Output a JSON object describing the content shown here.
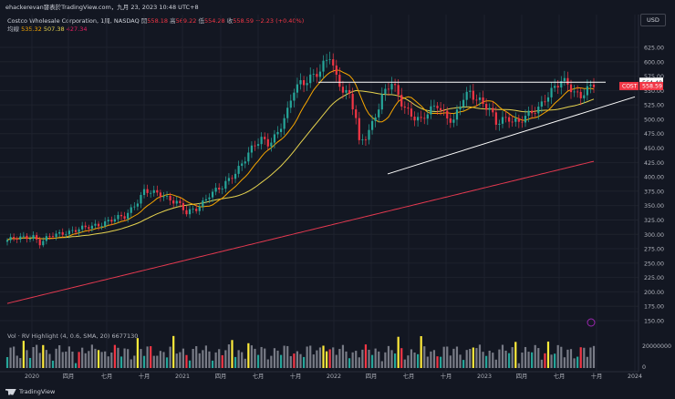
{
  "header": {
    "author_line": "ehackerevan發表於TradingView.com，九月 23, 2023 10:48 UTC+8",
    "symbol": "Costco Wholesale Corporation, 1周, NASDAQ",
    "open_label": "開",
    "open": "558.18",
    "high_label": "高",
    "high": "569.22",
    "low_label": "低",
    "low": "554.28",
    "close_label": "收",
    "close": "558.59",
    "change": "+2.23 (+0.40%)",
    "ma_label": "均線",
    "ma1": "535.32",
    "ma2": "507.38",
    "ma3": "427.34"
  },
  "currency": "USD",
  "volume_label": "Vol · RV Highlight (4, 0.6, SMA, 20)",
  "volume_value": "6677130",
  "volume_axis_label": "20000000",
  "volume_axis_zero": "0",
  "price_tags": {
    "resistance": "564.40",
    "cost_label": "COST",
    "cost": "558.59"
  },
  "footer": {
    "brand": "TradingView"
  },
  "colors": {
    "up": "#26a69a",
    "down": "#f23645",
    "ma_short": "#f7a600",
    "ma_mid": "#e6d34f",
    "ma_long": "#e53950",
    "trend": "#ffffff",
    "vol_high": "#ffeb3b",
    "vol_normal": "#787b86"
  },
  "chart_data": {
    "type": "candlestick",
    "ylim": [
      140,
      640
    ],
    "y_ticks": [
      "625.00",
      "600.00",
      "575.00",
      "550.00",
      "525.00",
      "500.00",
      "475.00",
      "450.00",
      "425.00",
      "400.00",
      "375.00",
      "350.00",
      "325.00",
      "300.00",
      "275.00",
      "250.00",
      "225.00",
      "200.00",
      "175.00",
      "150.00"
    ],
    "x_ticks": [
      "2020",
      "四月",
      "七月",
      "十月",
      "2021",
      "四月",
      "七月",
      "十月",
      "2022",
      "四月",
      "七月",
      "十月",
      "2023",
      "四月",
      "七月",
      "十月",
      "2024"
    ],
    "close_waypoints": [
      [
        0,
        290
      ],
      [
        3,
        292
      ],
      [
        8,
        298
      ],
      [
        10,
        285
      ],
      [
        13,
        295
      ],
      [
        18,
        305
      ],
      [
        24,
        310
      ],
      [
        30,
        322
      ],
      [
        36,
        330
      ],
      [
        38,
        345
      ],
      [
        42,
        375
      ],
      [
        45,
        370
      ],
      [
        48,
        368
      ],
      [
        52,
        357
      ],
      [
        55,
        335
      ],
      [
        58,
        345
      ],
      [
        62,
        370
      ],
      [
        66,
        380
      ],
      [
        70,
        410
      ],
      [
        74,
        440
      ],
      [
        78,
        465
      ],
      [
        80,
        460
      ],
      [
        83,
        478
      ],
      [
        86,
        510
      ],
      [
        88,
        550
      ],
      [
        90,
        565
      ],
      [
        93,
        575
      ],
      [
        96,
        580
      ],
      [
        99,
        610
      ],
      [
        101,
        575
      ],
      [
        103,
        555
      ],
      [
        105,
        540
      ],
      [
        107,
        500
      ],
      [
        108,
        455
      ],
      [
        110,
        470
      ],
      [
        112,
        495
      ],
      [
        115,
        540
      ],
      [
        118,
        560
      ],
      [
        121,
        530
      ],
      [
        124,
        510
      ],
      [
        127,
        495
      ],
      [
        130,
        515
      ],
      [
        132,
        528
      ],
      [
        135,
        505
      ],
      [
        137,
        495
      ],
      [
        140,
        535
      ],
      [
        142,
        548
      ],
      [
        145,
        535
      ],
      [
        148,
        515
      ],
      [
        150,
        490
      ],
      [
        152,
        500
      ],
      [
        154,
        505
      ],
      [
        157,
        495
      ],
      [
        160,
        505
      ],
      [
        163,
        520
      ],
      [
        165,
        540
      ],
      [
        168,
        555
      ],
      [
        170,
        562
      ],
      [
        172,
        560
      ],
      [
        174,
        548
      ],
      [
        176,
        545
      ],
      [
        178,
        552
      ],
      [
        180,
        558
      ]
    ],
    "trend_resistance": {
      "price": 564.4,
      "from": "2021-12",
      "to": "2023-09"
    },
    "trend_support": {
      "from_price": 405,
      "to_price": 520,
      "from": "2022-05",
      "to": "2024-01"
    },
    "moving_averages": [
      "ma_short",
      "ma_mid",
      "ma_long"
    ]
  }
}
